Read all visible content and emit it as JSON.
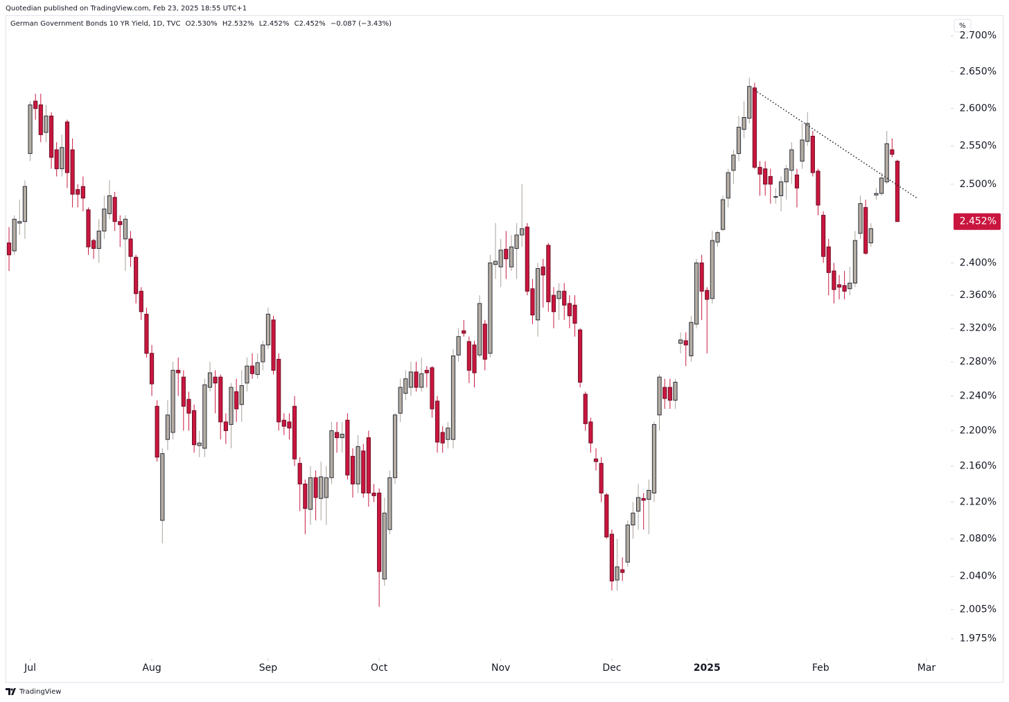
{
  "header": {
    "published": "Quotedian published on TradingView.com, Feb 23, 2025 18:55 UTC+1",
    "symbol": "German Government Bonds 10 YR Yield, 1D, TVC",
    "open": "O2.530%",
    "high": "H2.532%",
    "low": "L2.452%",
    "close": "C2.452%",
    "change": "−0.087 (−3.43%)"
  },
  "footer": {
    "brand": "TradingView"
  },
  "chart_data": {
    "type": "candlestick",
    "axis_unit": "%",
    "log": true,
    "up_color": "#b5ada3",
    "down_color": "#c9163f",
    "ylim": [
      1.955,
      2.723
    ],
    "xlim": [
      -0.66,
      178.1
    ],
    "yticks": [
      {
        "value": 2.7,
        "label": "2.700%"
      },
      {
        "value": 2.65,
        "label": "2.650%"
      },
      {
        "value": 2.6,
        "label": "2.600%"
      },
      {
        "value": 2.55,
        "label": "2.550%"
      },
      {
        "value": 2.5,
        "label": "2.500%"
      },
      {
        "value": 2.4,
        "label": "2.400%"
      },
      {
        "value": 2.36,
        "label": "2.360%"
      },
      {
        "value": 2.32,
        "label": "2.320%"
      },
      {
        "value": 2.28,
        "label": "2.280%"
      },
      {
        "value": 2.24,
        "label": "2.240%"
      },
      {
        "value": 2.2,
        "label": "2.200%"
      },
      {
        "value": 2.16,
        "label": "2.160%"
      },
      {
        "value": 2.12,
        "label": "2.120%"
      },
      {
        "value": 2.08,
        "label": "2.080%"
      },
      {
        "value": 2.04,
        "label": "2.040%"
      },
      {
        "value": 2.005,
        "label": "2.005%"
      },
      {
        "value": 1.975,
        "label": "1.975%"
      }
    ],
    "xticks": [
      {
        "value": 4,
        "label": "Jul"
      },
      {
        "value": 27,
        "label": "Aug"
      },
      {
        "value": 49,
        "label": "Sep"
      },
      {
        "value": 70,
        "label": "Oct"
      },
      {
        "value": 93,
        "label": "Nov"
      },
      {
        "value": 114,
        "label": "Dec"
      },
      {
        "value": 132,
        "label": "2025",
        "bold": true
      },
      {
        "value": 153.5,
        "label": "Feb"
      },
      {
        "value": 173.5,
        "label": "Mar"
      }
    ],
    "last_price": {
      "value": 2.452,
      "label": "2.452%"
    },
    "trendline": {
      "x": [
        141,
        171.7
      ],
      "y": [
        2.625,
        2.482
      ]
    },
    "candles": [
      [
        2.425,
        2.445,
        2.39,
        2.41
      ],
      [
        2.415,
        2.46,
        2.41,
        2.455
      ],
      [
        2.45,
        2.48,
        2.435,
        2.452
      ],
      [
        2.452,
        2.505,
        2.43,
        2.497
      ],
      [
        2.54,
        2.61,
        2.53,
        2.605
      ],
      [
        2.61,
        2.62,
        2.585,
        2.6
      ],
      [
        2.605,
        2.62,
        2.555,
        2.565
      ],
      [
        2.568,
        2.605,
        2.555,
        2.59
      ],
      [
        2.59,
        2.595,
        2.52,
        2.535
      ],
      [
        2.545,
        2.555,
        2.51,
        2.52
      ],
      [
        2.52,
        2.565,
        2.51,
        2.548
      ],
      [
        2.582,
        2.585,
        2.495,
        2.515
      ],
      [
        2.545,
        2.56,
        2.47,
        2.487
      ],
      [
        2.493,
        2.5,
        2.47,
        2.487
      ],
      [
        2.497,
        2.51,
        2.465,
        2.482
      ],
      [
        2.467,
        2.47,
        2.41,
        2.42
      ],
      [
        2.428,
        2.43,
        2.405,
        2.418
      ],
      [
        2.418,
        2.455,
        2.4,
        2.44
      ],
      [
        2.44,
        2.485,
        2.43,
        2.468
      ],
      [
        2.462,
        2.505,
        2.455,
        2.485
      ],
      [
        2.483,
        2.49,
        2.44,
        2.452
      ],
      [
        2.452,
        2.46,
        2.42,
        2.448
      ],
      [
        2.43,
        2.46,
        2.39,
        2.455
      ],
      [
        2.43,
        2.44,
        2.395,
        2.408
      ],
      [
        2.407,
        2.41,
        2.35,
        2.362
      ],
      [
        2.365,
        2.37,
        2.33,
        2.34
      ],
      [
        2.337,
        2.345,
        2.285,
        2.29
      ],
      [
        2.29,
        2.3,
        2.24,
        2.254
      ],
      [
        2.228,
        2.235,
        2.165,
        2.17
      ],
      [
        2.1,
        2.18,
        2.075,
        2.174
      ],
      [
        2.19,
        2.235,
        2.178,
        2.218
      ],
      [
        2.198,
        2.28,
        2.19,
        2.27
      ],
      [
        2.27,
        2.285,
        2.24,
        2.267
      ],
      [
        2.262,
        2.27,
        2.2,
        2.228
      ],
      [
        2.236,
        2.245,
        2.2,
        2.22
      ],
      [
        2.223,
        2.23,
        2.175,
        2.184
      ],
      [
        2.183,
        2.2,
        2.17,
        2.186
      ],
      [
        2.18,
        2.26,
        2.17,
        2.253
      ],
      [
        2.25,
        2.28,
        2.245,
        2.267
      ],
      [
        2.262,
        2.27,
        2.22,
        2.255
      ],
      [
        2.262,
        2.265,
        2.19,
        2.21
      ],
      [
        2.21,
        2.22,
        2.185,
        2.2
      ],
      [
        2.207,
        2.255,
        2.18,
        2.25
      ],
      [
        2.245,
        2.26,
        2.21,
        2.225
      ],
      [
        2.23,
        2.27,
        2.21,
        2.252
      ],
      [
        2.255,
        2.285,
        2.245,
        2.275
      ],
      [
        2.275,
        2.29,
        2.26,
        2.266
      ],
      [
        2.265,
        2.29,
        2.26,
        2.279
      ],
      [
        2.28,
        2.305,
        2.27,
        2.3
      ],
      [
        2.3,
        2.345,
        2.295,
        2.337
      ],
      [
        2.33,
        2.335,
        2.265,
        2.27
      ],
      [
        2.283,
        2.29,
        2.2,
        2.21
      ],
      [
        2.212,
        2.22,
        2.195,
        2.205
      ],
      [
        2.21,
        2.22,
        2.19,
        2.203
      ],
      [
        2.228,
        2.24,
        2.16,
        2.168
      ],
      [
        2.163,
        2.17,
        2.11,
        2.14
      ],
      [
        2.14,
        2.145,
        2.085,
        2.113
      ],
      [
        2.112,
        2.16,
        2.095,
        2.147
      ],
      [
        2.147,
        2.155,
        2.1,
        2.125
      ],
      [
        2.124,
        2.165,
        2.1,
        2.148
      ],
      [
        2.125,
        2.16,
        2.095,
        2.147
      ],
      [
        2.147,
        2.21,
        2.14,
        2.2
      ],
      [
        2.198,
        2.21,
        2.175,
        2.192
      ],
      [
        2.192,
        2.21,
        2.175,
        2.196
      ],
      [
        2.212,
        2.22,
        2.145,
        2.15
      ],
      [
        2.171,
        2.18,
        2.125,
        2.14
      ],
      [
        2.14,
        2.195,
        2.13,
        2.182
      ],
      [
        2.177,
        2.185,
        2.125,
        2.13
      ],
      [
        2.192,
        2.2,
        2.115,
        2.13
      ],
      [
        2.13,
        2.14,
        2.12,
        2.127
      ],
      [
        2.13,
        2.135,
        2.008,
        2.045
      ],
      [
        2.037,
        2.125,
        2.03,
        2.108
      ],
      [
        2.09,
        2.155,
        2.085,
        2.147
      ],
      [
        2.147,
        2.22,
        2.14,
        2.218
      ],
      [
        2.22,
        2.26,
        2.21,
        2.25
      ],
      [
        2.243,
        2.27,
        2.235,
        2.26
      ],
      [
        2.25,
        2.28,
        2.24,
        2.268
      ],
      [
        2.268,
        2.28,
        2.245,
        2.25
      ],
      [
        2.25,
        2.285,
        2.245,
        2.266
      ],
      [
        2.27,
        2.275,
        2.25,
        2.267
      ],
      [
        2.273,
        2.275,
        2.215,
        2.225
      ],
      [
        2.234,
        2.24,
        2.175,
        2.187
      ],
      [
        2.198,
        2.205,
        2.175,
        2.186
      ],
      [
        2.19,
        2.21,
        2.18,
        2.203
      ],
      [
        2.19,
        2.295,
        2.18,
        2.287
      ],
      [
        2.288,
        2.32,
        2.28,
        2.31
      ],
      [
        2.317,
        2.33,
        2.31,
        2.314
      ],
      [
        2.304,
        2.31,
        2.255,
        2.27
      ],
      [
        2.3,
        2.305,
        2.25,
        2.267
      ],
      [
        2.288,
        2.36,
        2.285,
        2.35
      ],
      [
        2.325,
        2.33,
        2.27,
        2.283
      ],
      [
        2.29,
        2.41,
        2.285,
        2.4
      ],
      [
        2.398,
        2.45,
        2.38,
        2.402
      ],
      [
        2.395,
        2.43,
        2.37,
        2.416
      ],
      [
        2.417,
        2.44,
        2.38,
        2.405
      ],
      [
        2.395,
        2.435,
        2.39,
        2.42
      ],
      [
        2.418,
        2.45,
        2.38,
        2.435
      ],
      [
        2.435,
        2.5,
        2.42,
        2.443
      ],
      [
        2.445,
        2.45,
        2.36,
        2.365
      ],
      [
        2.368,
        2.38,
        2.325,
        2.336
      ],
      [
        2.33,
        2.4,
        2.31,
        2.393
      ],
      [
        2.395,
        2.405,
        2.345,
        2.385
      ],
      [
        2.422,
        2.425,
        2.34,
        2.352
      ],
      [
        2.36,
        2.37,
        2.32,
        2.34
      ],
      [
        2.356,
        2.375,
        2.33,
        2.365
      ],
      [
        2.365,
        2.375,
        2.33,
        2.348
      ],
      [
        2.35,
        2.36,
        2.32,
        2.335
      ],
      [
        2.348,
        2.36,
        2.31,
        2.326
      ],
      [
        2.318,
        2.32,
        2.25,
        2.256
      ],
      [
        2.242,
        2.245,
        2.2,
        2.208
      ],
      [
        2.21,
        2.215,
        2.175,
        2.186
      ],
      [
        2.168,
        2.18,
        2.155,
        2.165
      ],
      [
        2.163,
        2.17,
        2.12,
        2.13
      ],
      [
        2.128,
        2.13,
        2.08,
        2.082
      ],
      [
        2.085,
        2.09,
        2.025,
        2.035
      ],
      [
        2.036,
        2.08,
        2.025,
        2.05
      ],
      [
        2.047,
        2.06,
        2.035,
        2.044
      ],
      [
        2.055,
        2.1,
        2.05,
        2.095
      ],
      [
        2.095,
        2.12,
        2.08,
        2.108
      ],
      [
        2.11,
        2.14,
        2.09,
        2.125
      ],
      [
        2.124,
        2.13,
        2.09,
        2.122
      ],
      [
        2.123,
        2.145,
        2.085,
        2.133
      ],
      [
        2.13,
        2.21,
        2.12,
        2.207
      ],
      [
        2.218,
        2.265,
        2.2,
        2.262
      ],
      [
        2.25,
        2.26,
        2.225,
        2.237
      ],
      [
        2.25,
        2.26,
        2.225,
        2.235
      ],
      [
        2.235,
        2.26,
        2.225,
        2.256
      ],
      [
        2.302,
        2.315,
        2.29,
        2.306
      ],
      [
        2.305,
        2.315,
        2.275,
        2.3
      ],
      [
        2.287,
        2.335,
        2.28,
        2.327
      ],
      [
        2.325,
        2.405,
        2.32,
        2.4
      ],
      [
        2.4,
        2.41,
        2.33,
        2.365
      ],
      [
        2.366,
        2.37,
        2.29,
        2.355
      ],
      [
        2.356,
        2.44,
        2.35,
        2.428
      ],
      [
        2.426,
        2.44,
        2.42,
        2.438
      ],
      [
        2.442,
        2.485,
        2.44,
        2.48
      ],
      [
        2.482,
        2.52,
        2.47,
        2.515
      ],
      [
        2.518,
        2.545,
        2.5,
        2.538
      ],
      [
        2.54,
        2.59,
        2.53,
        2.575
      ],
      [
        2.572,
        2.61,
        2.56,
        2.588
      ],
      [
        2.587,
        2.642,
        2.58,
        2.63
      ],
      [
        2.628,
        2.635,
        2.52,
        2.522
      ],
      [
        2.522,
        2.53,
        2.485,
        2.513
      ],
      [
        2.52,
        2.53,
        2.485,
        2.5
      ],
      [
        2.51,
        2.52,
        2.475,
        2.5
      ],
      [
        2.483,
        2.495,
        2.475,
        2.484
      ],
      [
        2.485,
        2.51,
        2.465,
        2.503
      ],
      [
        2.503,
        2.525,
        2.48,
        2.52
      ],
      [
        2.518,
        2.555,
        2.5,
        2.545
      ],
      [
        2.512,
        2.52,
        2.47,
        2.495
      ],
      [
        2.53,
        2.58,
        2.52,
        2.558
      ],
      [
        2.556,
        2.595,
        2.55,
        2.58
      ],
      [
        2.563,
        2.57,
        2.51,
        2.515
      ],
      [
        2.517,
        2.52,
        2.46,
        2.473
      ],
      [
        2.46,
        2.465,
        2.4,
        2.408
      ],
      [
        2.42,
        2.43,
        2.36,
        2.388
      ],
      [
        2.39,
        2.4,
        2.35,
        2.367
      ],
      [
        2.373,
        2.385,
        2.355,
        2.37
      ],
      [
        2.372,
        2.39,
        2.355,
        2.365
      ],
      [
        2.368,
        2.395,
        2.36,
        2.375
      ],
      [
        2.375,
        2.44,
        2.37,
        2.428
      ],
      [
        2.437,
        2.485,
        2.43,
        2.475
      ],
      [
        2.47,
        2.48,
        2.41,
        2.412
      ],
      [
        2.425,
        2.45,
        2.42,
        2.443
      ],
      [
        2.486,
        2.495,
        2.48,
        2.488
      ],
      [
        2.488,
        2.515,
        2.485,
        2.508
      ],
      [
        2.503,
        2.57,
        2.5,
        2.553
      ],
      [
        2.545,
        2.56,
        2.535,
        2.539
      ],
      [
        2.53,
        2.532,
        2.452,
        2.452
      ]
    ]
  }
}
